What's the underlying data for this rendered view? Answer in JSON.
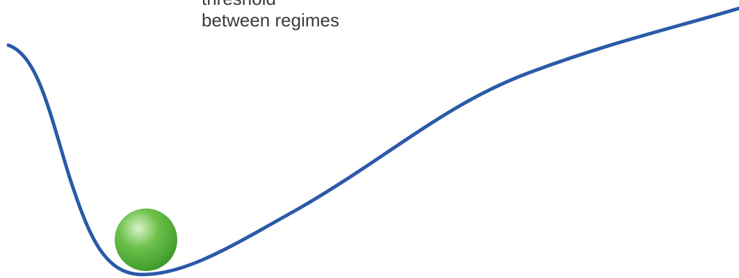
{
  "annotation": {
    "line1": "threshold",
    "line2": "between regimes"
  },
  "colors": {
    "curve": "#2a5aa8",
    "ball": "#6cc04a",
    "ball_highlight": "#d9f2c9",
    "ball_shadow": "#3f9a2c",
    "text": "#3a3a3a",
    "background": "#ffffff"
  }
}
